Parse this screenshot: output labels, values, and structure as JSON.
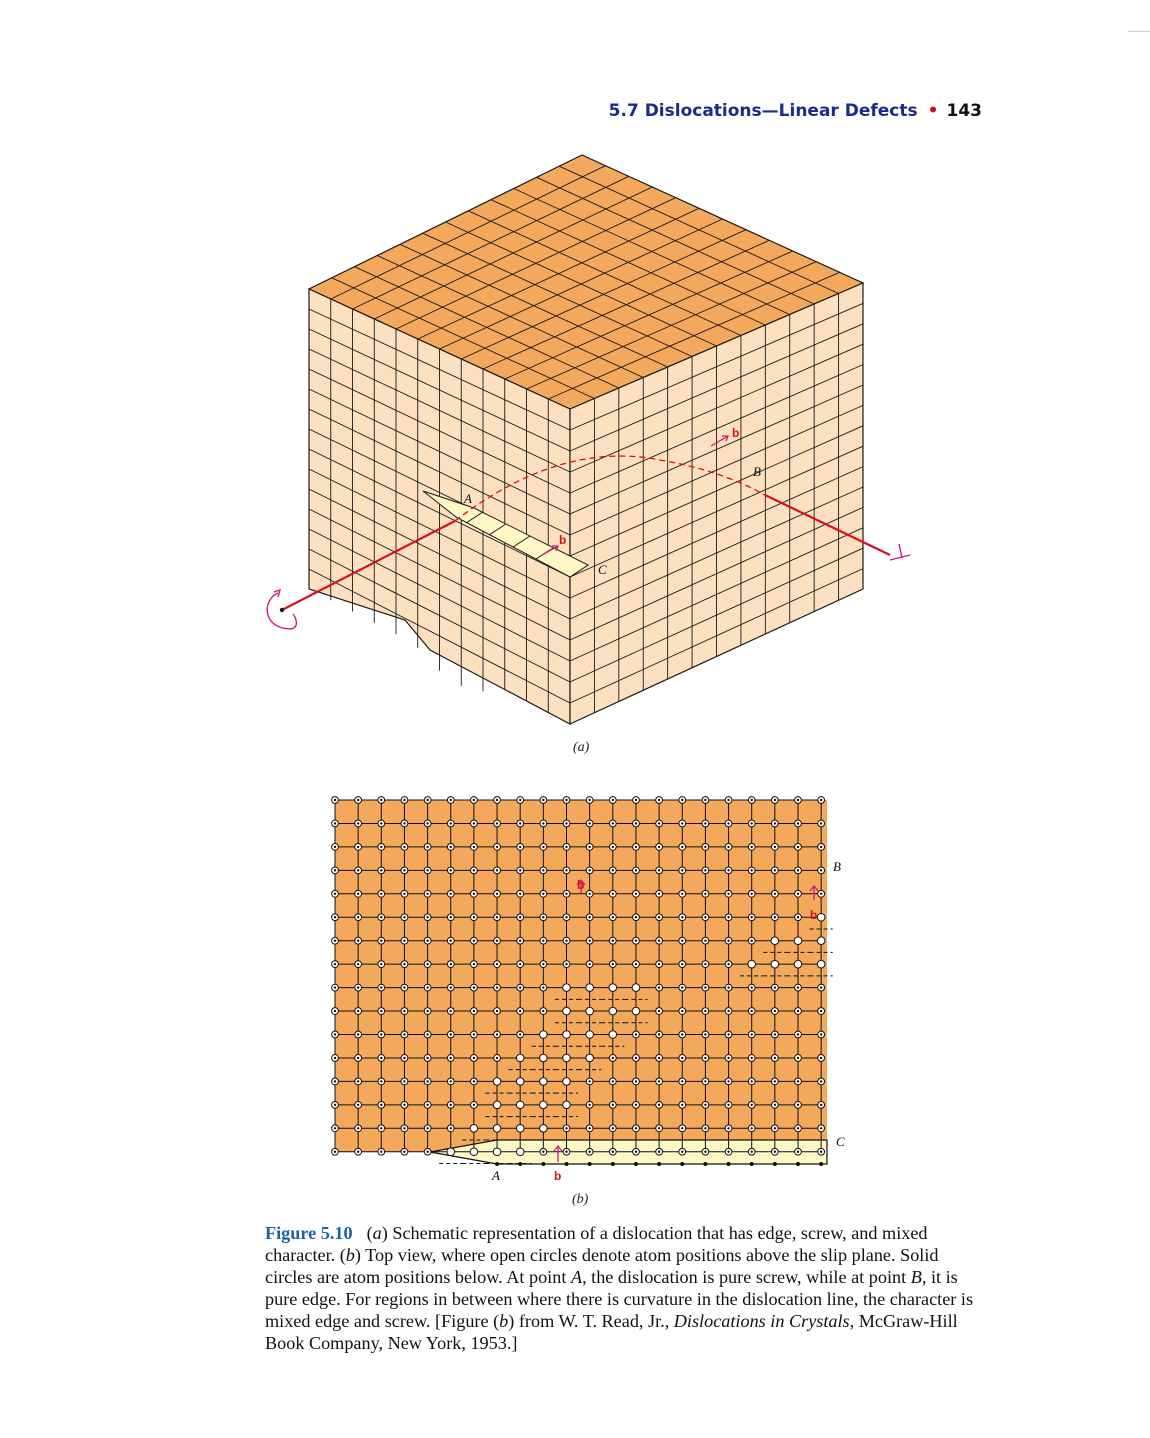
{
  "running_head": {
    "section": "5.7 Dislocations—Linear Defects",
    "separator": "•",
    "page_number": "143"
  },
  "figure_a": {
    "panel_label": "(a)",
    "point_labels": {
      "A": "A",
      "B": "B",
      "C": "C"
    },
    "burgers_labels": [
      "b",
      "b"
    ],
    "colors": {
      "top_face": "#f3a85b",
      "left_face": "#fde0c0",
      "right_face": "#fde0c0",
      "slip_face": "#fdf8c4",
      "dislocation_line": "#d8101e",
      "burgers_vector": "#cc1c7a",
      "grid_lines": "#1a1a1a"
    }
  },
  "figure_b": {
    "panel_label": "(b)",
    "point_labels": {
      "A": "A",
      "B": "B",
      "C": "C"
    },
    "burgers_labels": [
      "b",
      "b",
      "b"
    ],
    "colors": {
      "lattice_fill": "#f3a85b",
      "slip_strip": "#fdf8c4",
      "open_circle": "#ffffff",
      "solid_circle": "#111111"
    }
  },
  "caption": {
    "figure_number": "Figure 5.10",
    "part_a_marker": "a",
    "text_1": "Schematic representation of a dislocation that has edge, screw, and mixed character.",
    "part_b_marker": "b",
    "text_2": "Top view, where open circles denote atom positions above the slip plane. Solid circles are atom positions below. At point",
    "point_a": "A",
    "text_3": ", the dislocation is pure screw, while at point",
    "point_b": "B",
    "text_4": ", it is pure edge. For regions in between where there is curvature in the dislocation line, the character is mixed edge and screw. [Figure (",
    "ref_b": "b",
    "text_5": ") from W. T. Read, Jr.,",
    "book_title": "Dislocations in Crystals,",
    "publisher": "McGraw-Hill Book Company, New York, 1953.]"
  }
}
